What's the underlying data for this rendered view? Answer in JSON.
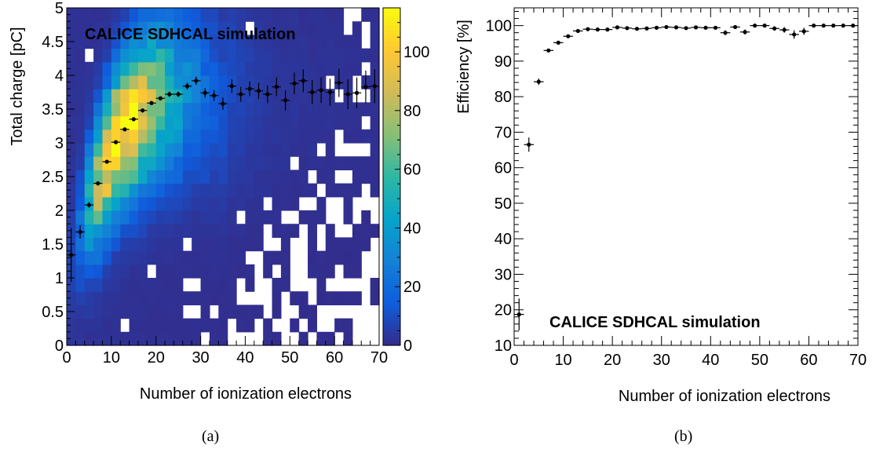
{
  "chart_data": [
    {
      "panel": "(a)",
      "type": "heatmap",
      "annotation": "CALICE SDHCAL simulation",
      "xlabel": "Number of ionization electrons",
      "ylabel": "Total charge [pC]",
      "xlim": [
        0,
        70
      ],
      "ylim": [
        0,
        5
      ],
      "x_ticks": [
        0,
        10,
        20,
        30,
        40,
        50,
        60,
        70
      ],
      "y_ticks": [
        0,
        0.5,
        1,
        1.5,
        2,
        2.5,
        3,
        3.5,
        4,
        4.5,
        5
      ],
      "y_tick_labels": [
        "0",
        "0.5",
        "1",
        "1.5",
        "2",
        "2.5",
        "3",
        "3.5",
        "4",
        "4.5",
        "5"
      ],
      "colorbar": {
        "min": 0,
        "max": 115,
        "ticks": [
          0,
          20,
          40,
          60,
          80,
          100
        ]
      },
      "bins": {
        "x_width": 2,
        "y_width": 0.2
      },
      "profile": {
        "x": [
          1,
          3,
          5,
          7,
          9,
          11,
          13,
          15,
          17,
          19,
          21,
          23,
          25,
          27,
          29,
          31,
          33,
          35,
          37,
          39,
          41,
          43,
          45,
          47,
          49,
          51,
          53,
          55,
          57,
          59,
          61,
          63,
          65,
          67,
          69
        ],
        "y": [
          1.34,
          1.68,
          2.08,
          2.4,
          2.72,
          3.01,
          3.2,
          3.35,
          3.48,
          3.59,
          3.66,
          3.72,
          3.72,
          3.84,
          3.92,
          3.74,
          3.7,
          3.58,
          3.84,
          3.72,
          3.8,
          3.77,
          3.72,
          3.83,
          3.63,
          3.88,
          3.92,
          3.75,
          3.78,
          3.75,
          3.89,
          3.72,
          3.74,
          3.83,
          3.84
        ],
        "yerr": [
          0.4,
          0.1,
          0.04,
          0.03,
          0.03,
          0.03,
          0.03,
          0.03,
          0.03,
          0.03,
          0.03,
          0.04,
          0.04,
          0.05,
          0.06,
          0.07,
          0.08,
          0.09,
          0.1,
          0.11,
          0.11,
          0.12,
          0.13,
          0.14,
          0.15,
          0.16,
          0.17,
          0.18,
          0.19,
          0.2,
          0.21,
          0.22,
          0.23,
          0.24,
          0.25
        ]
      }
    },
    {
      "panel": "(b)",
      "type": "scatter",
      "annotation": "CALICE SDHCAL simulation",
      "xlabel": "Number of ionization electrons",
      "ylabel": "Efficiency [%]",
      "xlim": [
        0,
        70
      ],
      "ylim": [
        10,
        105
      ],
      "x_ticks": [
        0,
        10,
        20,
        30,
        40,
        50,
        60,
        70
      ],
      "y_ticks": [
        10,
        20,
        30,
        40,
        50,
        60,
        70,
        80,
        90,
        100
      ],
      "x": [
        1,
        3,
        5,
        7,
        9,
        11,
        13,
        15,
        17,
        19,
        21,
        23,
        25,
        27,
        29,
        31,
        33,
        35,
        37,
        39,
        41,
        43,
        45,
        47,
        49,
        51,
        53,
        55,
        57,
        59,
        61,
        63,
        65,
        67,
        69
      ],
      "y": [
        18.7,
        66.5,
        84.2,
        93.0,
        95.2,
        97.0,
        98.5,
        99.0,
        98.9,
        98.9,
        99.5,
        99.3,
        99.1,
        99.2,
        99.4,
        99.6,
        99.5,
        99.3,
        99.5,
        99.4,
        99.4,
        98.0,
        99.6,
        98.2,
        100,
        100,
        99.2,
        98.8,
        97.5,
        98.4,
        100,
        100,
        100,
        100,
        100
      ],
      "yerr": [
        4.5,
        2.0,
        0.9,
        0.4,
        0.3,
        0.3,
        0.2,
        0.2,
        0.2,
        0.2,
        0.2,
        0.2,
        0.2,
        0.2,
        0.2,
        0.2,
        0.2,
        0.3,
        0.3,
        0.3,
        0.3,
        0.7,
        0.4,
        0.7,
        0.3,
        0.3,
        0.6,
        0.8,
        1.2,
        1.0,
        0.3,
        0.3,
        0.3,
        0.3,
        0.3
      ]
    }
  ],
  "captions": {
    "a": "(a)",
    "b": "(b)"
  },
  "colors": {
    "colormap": [
      "#352a87",
      "#0f5cdd",
      "#1481d6",
      "#06a4ca",
      "#2eb7a4",
      "#87bf77",
      "#d1bb59",
      "#fec832",
      "#f9fb0e"
    ],
    "empty": "#ffffff",
    "marker": "#000000"
  }
}
